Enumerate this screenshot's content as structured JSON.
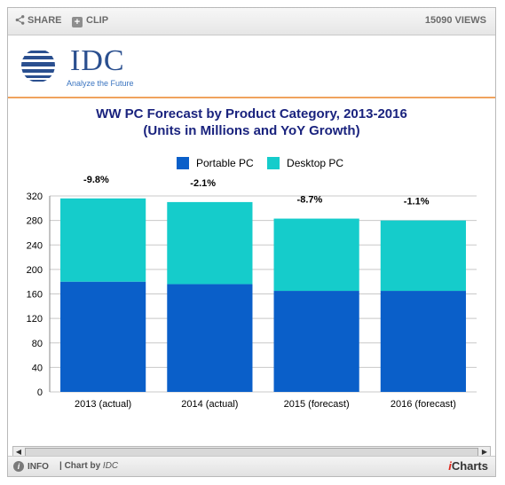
{
  "toolbar": {
    "share": "SHARE",
    "clip": "CLIP",
    "views": "15090 VIEWS"
  },
  "logo": {
    "name": "IDC",
    "tagline": "Analyze the Future"
  },
  "footer": {
    "info": "INFO",
    "chart_by": "| Chart by",
    "chart_by_name": "IDC",
    "brand_i": "i",
    "brand_rest": "Charts"
  },
  "colors": {
    "portable": "#0a5fc9",
    "desktop": "#15cccb",
    "title": "#1a237e",
    "grid": "#c8c8c8"
  },
  "chart_data": {
    "type": "bar",
    "stacked": true,
    "title_line1": "WW PC Forecast by Product Category, 2013-2016",
    "title_line2": "(Units in Millions and YoY Growth)",
    "categories": [
      "2013 (actual)",
      "2014 (actual)",
      "2015 (forecast)",
      "2016 (forecast)"
    ],
    "series": [
      {
        "name": "Portable PC",
        "values": [
          180,
          176,
          165,
          165
        ]
      },
      {
        "name": "Desktop PC",
        "values": [
          136,
          134,
          118,
          115
        ]
      }
    ],
    "annotations": [
      "-9.8%",
      "-2.1%",
      "-8.7%",
      "-1.1%"
    ],
    "yticks": [
      0,
      40,
      80,
      120,
      160,
      200,
      240,
      280,
      320
    ],
    "ylim": [
      0,
      320
    ],
    "grid": true,
    "legend_position": "top"
  }
}
